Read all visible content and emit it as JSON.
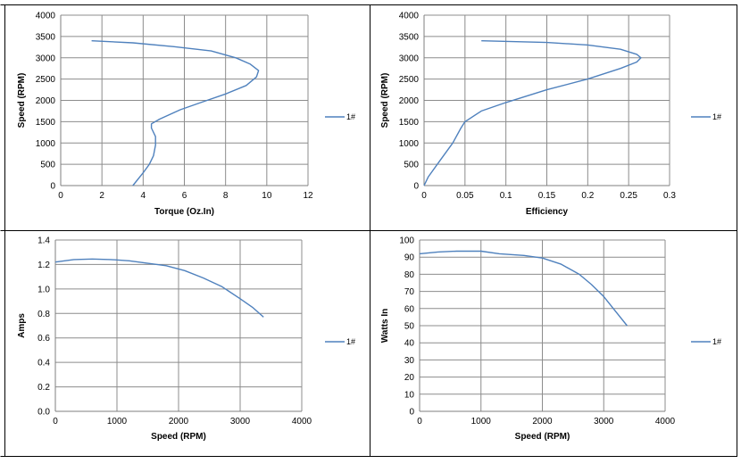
{
  "series_color": "#4f81bd",
  "chart_data": [
    {
      "type": "line",
      "xlabel": "Torque (Oz.In)",
      "ylabel": "Speed (RPM)",
      "xlim": [
        0,
        12
      ],
      "ylim": [
        0,
        4000
      ],
      "xticks": [
        0,
        2,
        4,
        6,
        8,
        10,
        12
      ],
      "yticks": [
        0,
        500,
        1000,
        1500,
        2000,
        2500,
        3000,
        3500,
        4000
      ],
      "grid": true,
      "legend": "right",
      "series": [
        {
          "name": "1#",
          "x": [
            1.5,
            3.5,
            5.5,
            7.3,
            8.5,
            9.2,
            9.6,
            9.5,
            9.0,
            8.0,
            6.8,
            5.8,
            4.8,
            4.4,
            4.4,
            4.6,
            4.6,
            4.5,
            4.3,
            4.0,
            3.5
          ],
          "y": [
            3400,
            3350,
            3260,
            3160,
            3000,
            2850,
            2700,
            2550,
            2350,
            2150,
            1950,
            1780,
            1560,
            1450,
            1350,
            1150,
            950,
            700,
            500,
            300,
            0
          ]
        }
      ]
    },
    {
      "type": "line",
      "xlabel": "Efficiency",
      "ylabel": "Speed (RPM)",
      "xlim": [
        0,
        0.3
      ],
      "ylim": [
        0,
        4000
      ],
      "xticks": [
        0,
        0.05,
        0.1,
        0.15,
        0.2,
        0.25,
        0.3
      ],
      "yticks": [
        0,
        500,
        1000,
        1500,
        2000,
        2500,
        3000,
        3500,
        4000
      ],
      "grid": true,
      "legend": "right",
      "series": [
        {
          "name": "1#",
          "x": [
            0.07,
            0.15,
            0.2,
            0.24,
            0.26,
            0.265,
            0.26,
            0.24,
            0.2,
            0.15,
            0.1,
            0.07,
            0.05,
            0.045,
            0.035,
            0.02,
            0.005,
            0
          ],
          "y": [
            3400,
            3360,
            3300,
            3200,
            3080,
            3000,
            2900,
            2750,
            2500,
            2250,
            1950,
            1750,
            1500,
            1350,
            1000,
            600,
            200,
            0
          ]
        }
      ]
    },
    {
      "type": "line",
      "xlabel": "Speed (RPM)",
      "ylabel": "Amps",
      "xlim": [
        0,
        4000
      ],
      "ylim": [
        0,
        1.4
      ],
      "xticks": [
        0,
        1000,
        2000,
        3000,
        4000
      ],
      "yticks": [
        0.0,
        0.2,
        0.4,
        0.6,
        0.8,
        1.0,
        1.2,
        1.4
      ],
      "ytick_labels": [
        "0.0",
        "0.2",
        "0.4",
        "0.6",
        "0.8",
        "1.0",
        "1.2",
        "1.4"
      ],
      "grid": true,
      "legend": "right",
      "series": [
        {
          "name": "1#",
          "x": [
            0,
            300,
            600,
            900,
            1200,
            1500,
            1800,
            2100,
            2400,
            2700,
            3000,
            3200,
            3380
          ],
          "y": [
            1.22,
            1.24,
            1.245,
            1.24,
            1.23,
            1.21,
            1.19,
            1.15,
            1.09,
            1.02,
            0.92,
            0.85,
            0.77
          ]
        }
      ]
    },
    {
      "type": "line",
      "xlabel": "Speed (RPM)",
      "ylabel": "Watts In",
      "xlim": [
        0,
        4000
      ],
      "ylim": [
        0,
        100
      ],
      "xticks": [
        0,
        1000,
        2000,
        3000,
        4000
      ],
      "yticks": [
        0,
        10,
        20,
        30,
        40,
        50,
        60,
        70,
        80,
        90,
        100
      ],
      "grid": true,
      "legend": "right",
      "series": [
        {
          "name": "1#",
          "x": [
            0,
            300,
            600,
            1000,
            1300,
            1700,
            2000,
            2300,
            2600,
            2800,
            3000,
            3200,
            3380
          ],
          "y": [
            92,
            93,
            93.5,
            93.5,
            92,
            91,
            89.5,
            86,
            80,
            74,
            67,
            58,
            50
          ]
        }
      ]
    }
  ]
}
